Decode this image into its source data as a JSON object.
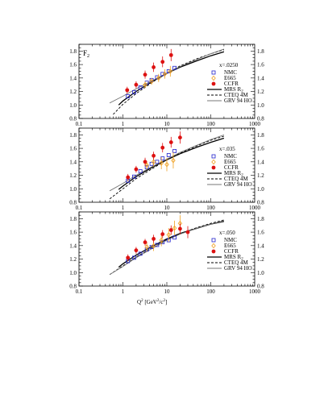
{
  "figure": {
    "panel_label": "F",
    "panel_label_sub": "2",
    "xlabel": "Q",
    "xlabel_sup1": "2",
    "xlabel_mid": " [GeV",
    "xlabel_sup2": "2",
    "xlabel_tail": "/c",
    "xlabel_sup3": "2",
    "xlabel_end": "]"
  },
  "colors": {
    "nmc": "#2222cc",
    "e665": "#f0a020",
    "ccfr": "#dd1111",
    "axes": "#000000"
  },
  "chart_data": [
    {
      "type": "scatter",
      "x_scale": "log",
      "xlim": [
        0.1,
        1000
      ],
      "ylim": [
        0.8,
        1.9
      ],
      "x_ticks": [
        "0.1",
        "1",
        "10",
        "100",
        "1000"
      ],
      "y_ticks": [
        "0.8",
        "1.0",
        "1.2",
        "1.4",
        "1.6",
        "1.8"
      ],
      "x_label": "x=.0250",
      "legend": [
        "NMC",
        "E665",
        "CCFR",
        "MRS R",
        "CTEQ 4M",
        "GRV 94 HO"
      ],
      "series": [
        {
          "name": "NMC",
          "marker": "open-square",
          "points": [
            [
              1.3,
              1.13
            ],
            [
              1.8,
              1.19
            ],
            [
              2.5,
              1.26
            ],
            [
              3.5,
              1.33
            ],
            [
              4.5,
              1.37
            ],
            [
              6.0,
              1.41
            ],
            [
              8.0,
              1.46
            ],
            [
              11.0,
              1.5
            ],
            [
              15.0,
              1.55
            ]
          ]
        },
        {
          "name": "E665",
          "marker": "open-diamond",
          "points": [
            [
              3.2,
              1.3
            ],
            [
              4.5,
              1.35
            ],
            [
              6.5,
              1.4
            ],
            [
              9.0,
              1.46
            ],
            [
              12.0,
              1.5
            ]
          ],
          "errors": [
            0.05,
            0.05,
            0.06,
            0.07,
            0.08
          ]
        },
        {
          "name": "CCFR",
          "marker": "filled-circle",
          "points": [
            [
              1.25,
              1.22
            ],
            [
              2.0,
              1.3
            ],
            [
              3.2,
              1.45
            ],
            [
              5.0,
              1.56
            ],
            [
              8.0,
              1.64
            ],
            [
              12.5,
              1.74
            ]
          ],
          "errors": [
            0.05,
            0.05,
            0.06,
            0.07,
            0.08,
            0.09
          ]
        },
        {
          "name": "MRS R",
          "style": "solid",
          "points": [
            [
              0.8,
              1.0
            ],
            [
              1,
              1.06
            ],
            [
              2,
              1.2
            ],
            [
              5,
              1.36
            ],
            [
              10,
              1.47
            ],
            [
              20,
              1.56
            ],
            [
              50,
              1.66
            ],
            [
              100,
              1.73
            ],
            [
              200,
              1.79
            ]
          ]
        },
        {
          "name": "CTEQ 4M",
          "style": "dashed",
          "points": [
            [
              0.6,
              0.86
            ],
            [
              1,
              1.01
            ],
            [
              2,
              1.17
            ],
            [
              5,
              1.35
            ],
            [
              10,
              1.47
            ],
            [
              20,
              1.58
            ],
            [
              50,
              1.69
            ],
            [
              100,
              1.76
            ],
            [
              200,
              1.82
            ]
          ]
        },
        {
          "name": "GRV 94 HO",
          "style": "grey",
          "points": [
            [
              0.5,
              1.03
            ],
            [
              1,
              1.13
            ],
            [
              2,
              1.24
            ],
            [
              5,
              1.37
            ],
            [
              10,
              1.47
            ],
            [
              20,
              1.57
            ],
            [
              50,
              1.68
            ],
            [
              100,
              1.76
            ],
            [
              200,
              1.83
            ]
          ]
        }
      ]
    },
    {
      "type": "scatter",
      "x_scale": "log",
      "xlim": [
        0.1,
        1000
      ],
      "ylim": [
        0.8,
        1.9
      ],
      "x_ticks": [
        "0.1",
        "1",
        "10",
        "100",
        "1000"
      ],
      "y_ticks": [
        "0.8",
        "1.0",
        "1.2",
        "1.4",
        "1.6",
        "1.8"
      ],
      "x_label": "x=.035",
      "legend": [
        "NMC",
        "E665",
        "CCFR",
        "MRS R",
        "CTEQ 4M",
        "GRV 94 HO"
      ],
      "series": [
        {
          "name": "NMC",
          "marker": "open-square",
          "points": [
            [
              1.3,
              1.12
            ],
            [
              1.8,
              1.18
            ],
            [
              2.5,
              1.26
            ],
            [
              3.5,
              1.32
            ],
            [
              4.5,
              1.37
            ],
            [
              6.0,
              1.4
            ],
            [
              8.0,
              1.45
            ],
            [
              11.0,
              1.5
            ],
            [
              15.0,
              1.56
            ]
          ]
        },
        {
          "name": "E665",
          "marker": "open-diamond",
          "points": [
            [
              3.5,
              1.35
            ],
            [
              5.0,
              1.4
            ],
            [
              7.5,
              1.38
            ],
            [
              10.0,
              1.36
            ],
            [
              14.0,
              1.42
            ]
          ],
          "errors": [
            0.06,
            0.07,
            0.09,
            0.1,
            0.12
          ]
        },
        {
          "name": "CCFR",
          "marker": "filled-circle",
          "points": [
            [
              1.3,
              1.17
            ],
            [
              2.0,
              1.29
            ],
            [
              3.2,
              1.4
            ],
            [
              5.0,
              1.49
            ],
            [
              8.0,
              1.61
            ],
            [
              12.5,
              1.69
            ],
            [
              20.0,
              1.76
            ]
          ],
          "errors": [
            0.05,
            0.05,
            0.06,
            0.06,
            0.07,
            0.08,
            0.09
          ]
        },
        {
          "name": "MRS R",
          "style": "solid",
          "points": [
            [
              0.8,
              0.99
            ],
            [
              1,
              1.04
            ],
            [
              2,
              1.18
            ],
            [
              5,
              1.33
            ],
            [
              10,
              1.43
            ],
            [
              20,
              1.52
            ],
            [
              50,
              1.62
            ],
            [
              100,
              1.69
            ],
            [
              200,
              1.75
            ]
          ]
        },
        {
          "name": "CTEQ 4M",
          "style": "dashed",
          "points": [
            [
              0.5,
              0.85
            ],
            [
              1,
              1.0
            ],
            [
              2,
              1.15
            ],
            [
              5,
              1.31
            ],
            [
              10,
              1.43
            ],
            [
              20,
              1.53
            ],
            [
              50,
              1.64
            ],
            [
              100,
              1.72
            ],
            [
              200,
              1.78
            ]
          ]
        },
        {
          "name": "GRV 94 HO",
          "style": "grey",
          "points": [
            [
              0.5,
              0.97
            ],
            [
              1,
              1.08
            ],
            [
              2,
              1.2
            ],
            [
              5,
              1.34
            ],
            [
              10,
              1.44
            ],
            [
              20,
              1.54
            ],
            [
              50,
              1.65
            ],
            [
              100,
              1.73
            ],
            [
              200,
              1.8
            ]
          ]
        }
      ]
    },
    {
      "type": "scatter",
      "x_scale": "log",
      "xlim": [
        0.1,
        1000
      ],
      "ylim": [
        0.8,
        1.9
      ],
      "x_ticks": [
        "0.1",
        "1",
        "10",
        "100",
        "1000"
      ],
      "y_ticks": [
        "0.8",
        "1.0",
        "1.2",
        "1.4",
        "1.6",
        "1.8"
      ],
      "x_label": "x=.050",
      "legend": [
        "NMC",
        "E665",
        "CCFR",
        "MRS R",
        "CTEQ 4M",
        "GRV 94 HO"
      ],
      "series": [
        {
          "name": "NMC",
          "marker": "open-square",
          "points": [
            [
              1.3,
              1.17
            ],
            [
              1.8,
              1.22
            ],
            [
              2.5,
              1.28
            ],
            [
              3.5,
              1.34
            ],
            [
              4.5,
              1.38
            ],
            [
              6.0,
              1.41
            ],
            [
              8.0,
              1.45
            ],
            [
              11.0,
              1.48
            ],
            [
              15.0,
              1.52
            ]
          ]
        },
        {
          "name": "E665",
          "marker": "open-diamond",
          "points": [
            [
              3.5,
              1.38
            ],
            [
              5.0,
              1.4
            ],
            [
              7.5,
              1.48
            ],
            [
              11.0,
              1.56
            ],
            [
              15.0,
              1.66
            ],
            [
              20.0,
              1.73
            ]
          ],
          "errors": [
            0.07,
            0.08,
            0.09,
            0.1,
            0.11,
            0.12
          ]
        },
        {
          "name": "CCFR",
          "marker": "filled-circle",
          "points": [
            [
              1.3,
              1.22
            ],
            [
              2.0,
              1.33
            ],
            [
              3.2,
              1.45
            ],
            [
              5.0,
              1.5
            ],
            [
              8.0,
              1.57
            ],
            [
              12.5,
              1.63
            ],
            [
              20.0,
              1.65
            ],
            [
              30.0,
              1.6
            ]
          ],
          "errors": [
            0.05,
            0.05,
            0.05,
            0.06,
            0.06,
            0.07,
            0.08,
            0.09
          ]
        },
        {
          "name": "MRS R",
          "style": "solid",
          "points": [
            [
              0.8,
              1.08
            ],
            [
              1,
              1.13
            ],
            [
              2,
              1.26
            ],
            [
              5,
              1.4
            ],
            [
              10,
              1.5
            ],
            [
              20,
              1.58
            ],
            [
              50,
              1.66
            ],
            [
              100,
              1.72
            ],
            [
              200,
              1.76
            ]
          ]
        },
        {
          "name": "CTEQ 4M",
          "style": "dashed",
          "points": [
            [
              0.5,
              0.97
            ],
            [
              1,
              1.1
            ],
            [
              2,
              1.23
            ],
            [
              5,
              1.38
            ],
            [
              10,
              1.49
            ],
            [
              20,
              1.58
            ],
            [
              50,
              1.67
            ],
            [
              100,
              1.73
            ],
            [
              200,
              1.78
            ]
          ]
        },
        {
          "name": "GRV 94 HO",
          "style": "grey",
          "points": [
            [
              0.5,
              0.97
            ],
            [
              1,
              1.09
            ],
            [
              2,
              1.22
            ],
            [
              5,
              1.37
            ],
            [
              10,
              1.48
            ],
            [
              20,
              1.57
            ],
            [
              50,
              1.66
            ],
            [
              100,
              1.72
            ],
            [
              200,
              1.77
            ]
          ]
        }
      ]
    }
  ]
}
